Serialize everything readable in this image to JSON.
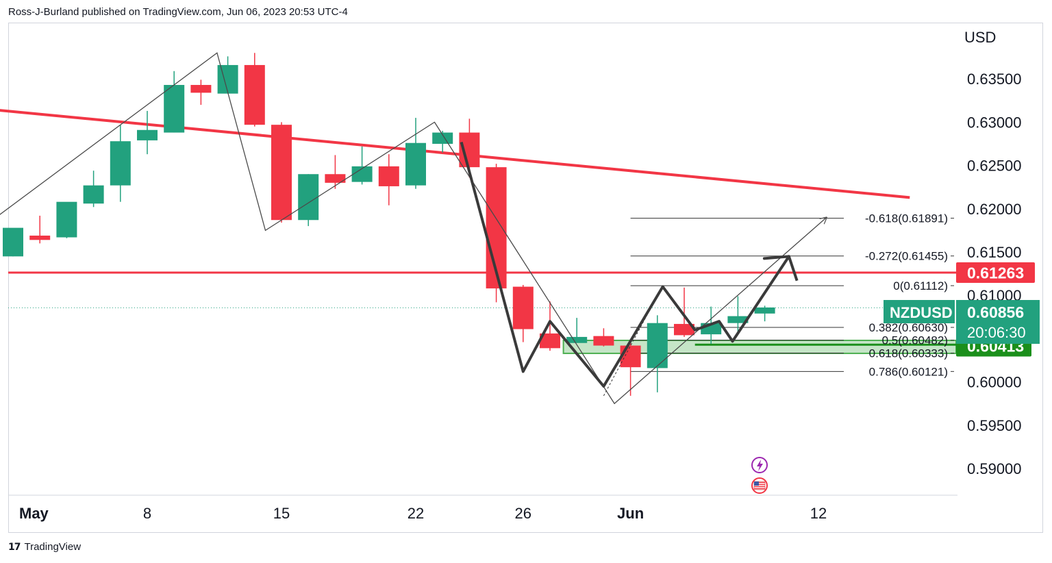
{
  "header": {
    "text": "Ross-J-Burland published on TradingView.com, Jun 06, 2023 20:53 UTC-4"
  },
  "footer": {
    "logo_icon": "tradingview-logo-icon",
    "brand": "TradingView"
  },
  "colors": {
    "up": "#22a17e",
    "down": "#f23645",
    "trendline": "#f23645",
    "support_zone": "#4caf50",
    "current_price_tag": "#22a17e",
    "resistance_tag": "#f23645",
    "zone_tag": "#1b8f1b",
    "drawing": "#3a3a3a"
  },
  "events": [
    {
      "icon": "lightning-icon",
      "color": "#9c27b0"
    },
    {
      "icon": "us-flag-icon",
      "color": "#f23645"
    }
  ],
  "chart_data": {
    "type": "candlestick",
    "symbol": "NZDUSD",
    "currency": "USD",
    "last_price": "0.60856",
    "countdown": "20:06:30",
    "ylim": [
      0.587,
      0.6415
    ],
    "y_ticks": [
      "0.63500",
      "0.63000",
      "0.62500",
      "0.62000",
      "0.61500",
      "0.61000",
      "0.60000",
      "0.59500",
      "0.59000"
    ],
    "x_ticks": [
      {
        "label": "May",
        "index": -1,
        "bold": true
      },
      {
        "label": "8",
        "index": 5
      },
      {
        "label": "15",
        "index": 10
      },
      {
        "label": "22",
        "index": 15
      },
      {
        "label": "26",
        "index": 19
      },
      {
        "label": "Jun",
        "index": 23,
        "bold": true
      },
      {
        "label": "12",
        "index": 30
      }
    ],
    "candles": [
      {
        "o": 0.6145,
        "h": 0.6175,
        "l": 0.6145,
        "c": 0.6178
      },
      {
        "o": 0.6169,
        "h": 0.6192,
        "l": 0.616,
        "c": 0.6164
      },
      {
        "o": 0.6167,
        "h": 0.6203,
        "l": 0.6166,
        "c": 0.6208
      },
      {
        "o": 0.6206,
        "h": 0.6244,
        "l": 0.6202,
        "c": 0.6227
      },
      {
        "o": 0.6227,
        "h": 0.6297,
        "l": 0.6208,
        "c": 0.6278
      },
      {
        "o": 0.6279,
        "h": 0.6313,
        "l": 0.6263,
        "c": 0.6291
      },
      {
        "o": 0.6288,
        "h": 0.6359,
        "l": 0.6288,
        "c": 0.6343
      },
      {
        "o": 0.6343,
        "h": 0.6349,
        "l": 0.632,
        "c": 0.6334
      },
      {
        "o": 0.6333,
        "h": 0.6376,
        "l": 0.6333,
        "c": 0.6366
      },
      {
        "o": 0.6366,
        "h": 0.638,
        "l": 0.6295,
        "c": 0.6297
      },
      {
        "o": 0.6297,
        "h": 0.63,
        "l": 0.6184,
        "c": 0.6187
      },
      {
        "o": 0.6187,
        "h": 0.624,
        "l": 0.618,
        "c": 0.624
      },
      {
        "o": 0.624,
        "h": 0.6262,
        "l": 0.6223,
        "c": 0.623
      },
      {
        "o": 0.6231,
        "h": 0.6272,
        "l": 0.6228,
        "c": 0.6249
      },
      {
        "o": 0.6249,
        "h": 0.6263,
        "l": 0.6204,
        "c": 0.6226
      },
      {
        "o": 0.6227,
        "h": 0.6305,
        "l": 0.6223,
        "c": 0.6276
      },
      {
        "o": 0.6275,
        "h": 0.629,
        "l": 0.6265,
        "c": 0.6288
      },
      {
        "o": 0.6288,
        "h": 0.6304,
        "l": 0.6236,
        "c": 0.6248
      },
      {
        "o": 0.6248,
        "h": 0.6252,
        "l": 0.6092,
        "c": 0.6108
      },
      {
        "o": 0.611,
        "h": 0.6112,
        "l": 0.6046,
        "c": 0.6061
      },
      {
        "o": 0.6056,
        "h": 0.6093,
        "l": 0.6036,
        "c": 0.6039
      },
      {
        "o": 0.6045,
        "h": 0.6074,
        "l": 0.6045,
        "c": 0.6052
      },
      {
        "o": 0.6053,
        "h": 0.6062,
        "l": 0.6041,
        "c": 0.6042
      },
      {
        "o": 0.6042,
        "h": 0.6047,
        "l": 0.5984,
        "c": 0.6017
      },
      {
        "o": 0.6016,
        "h": 0.6077,
        "l": 0.5988,
        "c": 0.6068
      },
      {
        "o": 0.6067,
        "h": 0.6109,
        "l": 0.6052,
        "c": 0.6054
      },
      {
        "o": 0.6055,
        "h": 0.6087,
        "l": 0.6044,
        "c": 0.6068
      },
      {
        "o": 0.6068,
        "h": 0.6099,
        "l": 0.6057,
        "c": 0.6076
      },
      {
        "o": 0.6079,
        "h": 0.6088,
        "l": 0.607,
        "c": 0.6086
      }
    ],
    "trendlines": [
      {
        "name": "descending-resistance",
        "from": [
          -1.6,
          0.6317
        ],
        "to": [
          33.4,
          0.6213
        ]
      }
    ],
    "horizontal_levels": [
      {
        "name": "resistance",
        "price": 0.61263,
        "label": "0.61263"
      }
    ],
    "support_zone": {
      "from_index": 20.5,
      "price_top": 0.6048,
      "price_bottom": 0.6033,
      "label": "0.60413"
    },
    "fibonacci": [
      {
        "label": "-0.618(0.61891)",
        "price": 0.61891
      },
      {
        "label": "-0.272(0.61455)",
        "price": 0.61455
      },
      {
        "label": "0(0.61112)",
        "price": 0.61112
      },
      {
        "label": "0.382(0.60630)",
        "price": 0.6063
      },
      {
        "label": "0.5(0.60482)",
        "price": 0.60482
      },
      {
        "label": "0.618(0.60333)",
        "price": 0.60333
      },
      {
        "label": "0.786(0.60121)",
        "price": 0.60121
      }
    ],
    "thin_path": [
      [
        -1.5,
        0.617
      ],
      [
        7.6,
        0.638
      ],
      [
        9.4,
        0.6175
      ],
      [
        15.7,
        0.63
      ],
      [
        22.4,
        0.5975
      ],
      [
        30.3,
        0.619
      ]
    ],
    "thick_path": [
      [
        16.7,
        0.6277
      ],
      [
        19.0,
        0.6012
      ],
      [
        20.0,
        0.607
      ],
      [
        22.0,
        0.5995
      ],
      [
        24.2,
        0.611
      ],
      [
        25.4,
        0.606
      ],
      [
        26.3,
        0.607
      ],
      [
        26.8,
        0.6047
      ],
      [
        28.9,
        0.6145
      ],
      [
        29.2,
        0.6117
      ]
    ]
  }
}
